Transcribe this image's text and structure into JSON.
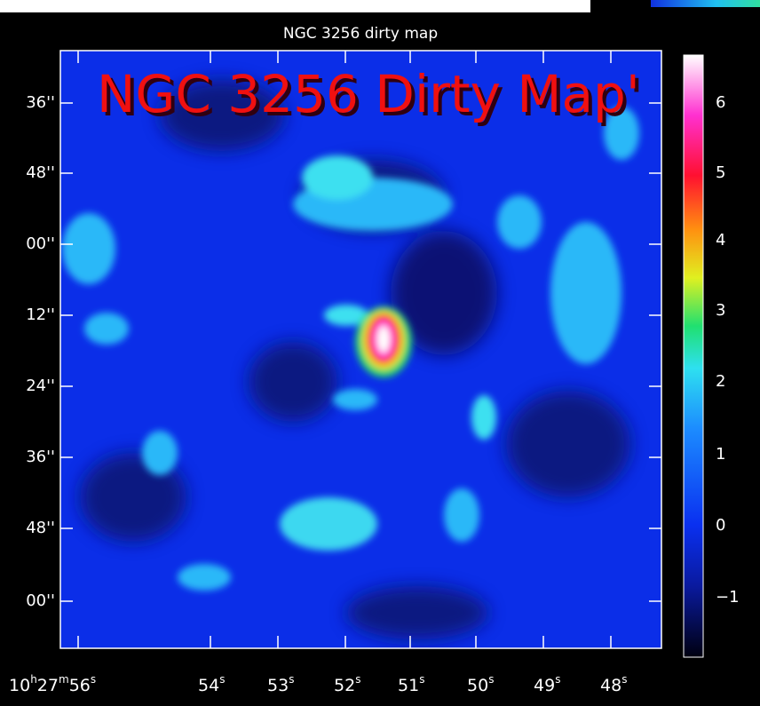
{
  "plot": {
    "title": "NGC 3256 dirty map",
    "overlay_text": "NGC 3256 Dirty Map'",
    "y_labels": [
      "36''",
      "48''",
      "00''",
      "12''",
      "24''",
      "36''",
      "48''",
      "00''"
    ],
    "x_labels": [
      [
        "10",
        "h",
        "27",
        "m",
        "56",
        "s"
      ],
      [
        "54",
        "s"
      ],
      [
        "53",
        "s"
      ],
      [
        "52",
        "s"
      ],
      [
        "51",
        "s"
      ],
      [
        "50",
        "s"
      ],
      [
        "49",
        "s"
      ],
      [
        "48",
        "s"
      ]
    ],
    "colorbar_labels": [
      "6",
      "5",
      "4",
      "3",
      "2",
      "1",
      "0",
      "−1"
    ]
  }
}
